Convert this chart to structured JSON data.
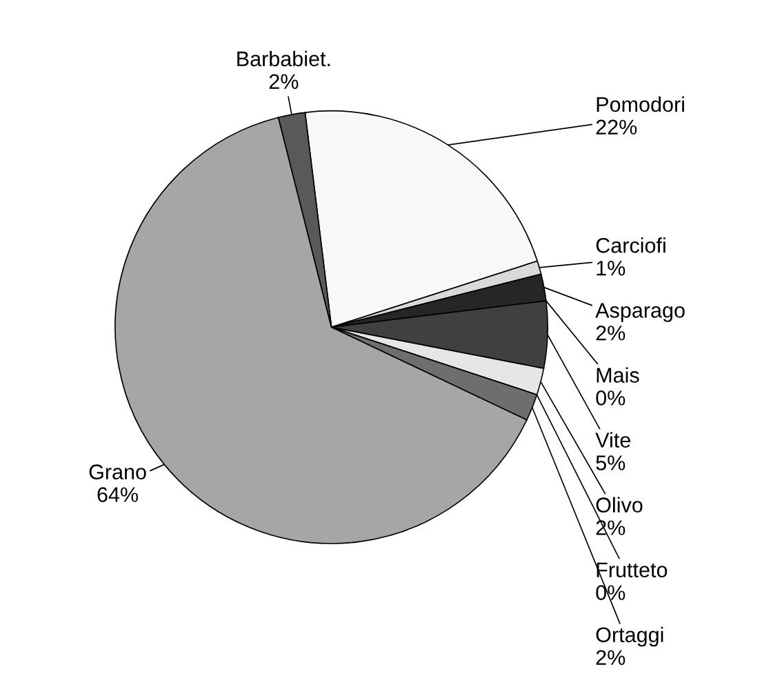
{
  "chart_data": {
    "type": "pie",
    "categories": [
      "Pomodori",
      "Carciofi",
      "Asparago",
      "Mais",
      "Vite",
      "Olivo",
      "Frutteto",
      "Ortaggi",
      "Grano",
      "Barbabiet."
    ],
    "values": [
      22,
      1,
      2,
      0,
      5,
      2,
      0,
      2,
      64,
      2
    ],
    "colors": [
      "#f8f8f8",
      "#d9d9d9",
      "#262626",
      "#808080",
      "#404040",
      "#e6e6e6",
      "#000000",
      "#6e6e6e",
      "#a6a6a6",
      "#595959"
    ],
    "value_labels": [
      "22%",
      "1%",
      "2%",
      "0%",
      "5%",
      "2%",
      "0%",
      "2%",
      "64%",
      "2%"
    ]
  }
}
